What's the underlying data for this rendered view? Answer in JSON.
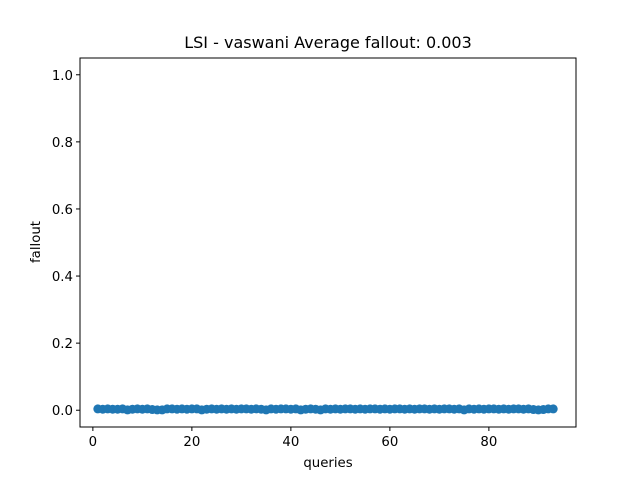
{
  "chart_data": {
    "type": "scatter",
    "title": "LSI - vaswani  Average fallout: 0.003",
    "xlabel": "queries",
    "ylabel": "fallout",
    "xlim": [
      -2.6,
      97.6
    ],
    "ylim": [
      -0.05,
      1.05
    ],
    "xticks": [
      0,
      20,
      40,
      60,
      80
    ],
    "yticks": [
      0.0,
      0.2,
      0.4,
      0.6,
      0.8,
      1.0
    ],
    "xtick_labels": [
      "0",
      "20",
      "40",
      "60",
      "80"
    ],
    "ytick_labels": [
      "0.0",
      "0.2",
      "0.4",
      "0.6",
      "0.8",
      "1.0"
    ],
    "grid": false,
    "marker_color": "#1f77b4",
    "series": [
      {
        "x": [
          1,
          2,
          3,
          4,
          5,
          6,
          7,
          8,
          9,
          10,
          11,
          12,
          13,
          14,
          15,
          16,
          17,
          18,
          19,
          20,
          21,
          22,
          23,
          24,
          25,
          26,
          27,
          28,
          29,
          30,
          31,
          32,
          33,
          34,
          35,
          36,
          37,
          38,
          39,
          40,
          41,
          42,
          43,
          44,
          45,
          46,
          47,
          48,
          49,
          50,
          51,
          52,
          53,
          54,
          55,
          56,
          57,
          58,
          59,
          60,
          61,
          62,
          63,
          64,
          65,
          66,
          67,
          68,
          69,
          70,
          71,
          72,
          73,
          74,
          75,
          76,
          77,
          78,
          79,
          80,
          81,
          82,
          83,
          84,
          85,
          86,
          87,
          88,
          89,
          90,
          91,
          92,
          93
        ],
        "y": [
          0.004,
          0.003,
          0.004,
          0.003,
          0.003,
          0.004,
          0.001,
          0.003,
          0.004,
          0.003,
          0.004,
          0.002,
          0.001,
          0.001,
          0.004,
          0.004,
          0.003,
          0.004,
          0.003,
          0.004,
          0.004,
          0.001,
          0.003,
          0.004,
          0.003,
          0.004,
          0.003,
          0.004,
          0.003,
          0.004,
          0.004,
          0.003,
          0.004,
          0.003,
          0.001,
          0.004,
          0.003,
          0.004,
          0.004,
          0.003,
          0.004,
          0.001,
          0.003,
          0.004,
          0.003,
          0.001,
          0.004,
          0.003,
          0.004,
          0.003,
          0.004,
          0.004,
          0.003,
          0.004,
          0.003,
          0.004,
          0.004,
          0.003,
          0.004,
          0.003,
          0.004,
          0.004,
          0.003,
          0.004,
          0.003,
          0.004,
          0.004,
          0.003,
          0.004,
          0.003,
          0.004,
          0.004,
          0.003,
          0.004,
          0.001,
          0.004,
          0.003,
          0.004,
          0.003,
          0.004,
          0.004,
          0.003,
          0.004,
          0.003,
          0.004,
          0.004,
          0.003,
          0.004,
          0.002,
          0.001,
          0.002,
          0.004,
          0.004
        ]
      }
    ]
  }
}
